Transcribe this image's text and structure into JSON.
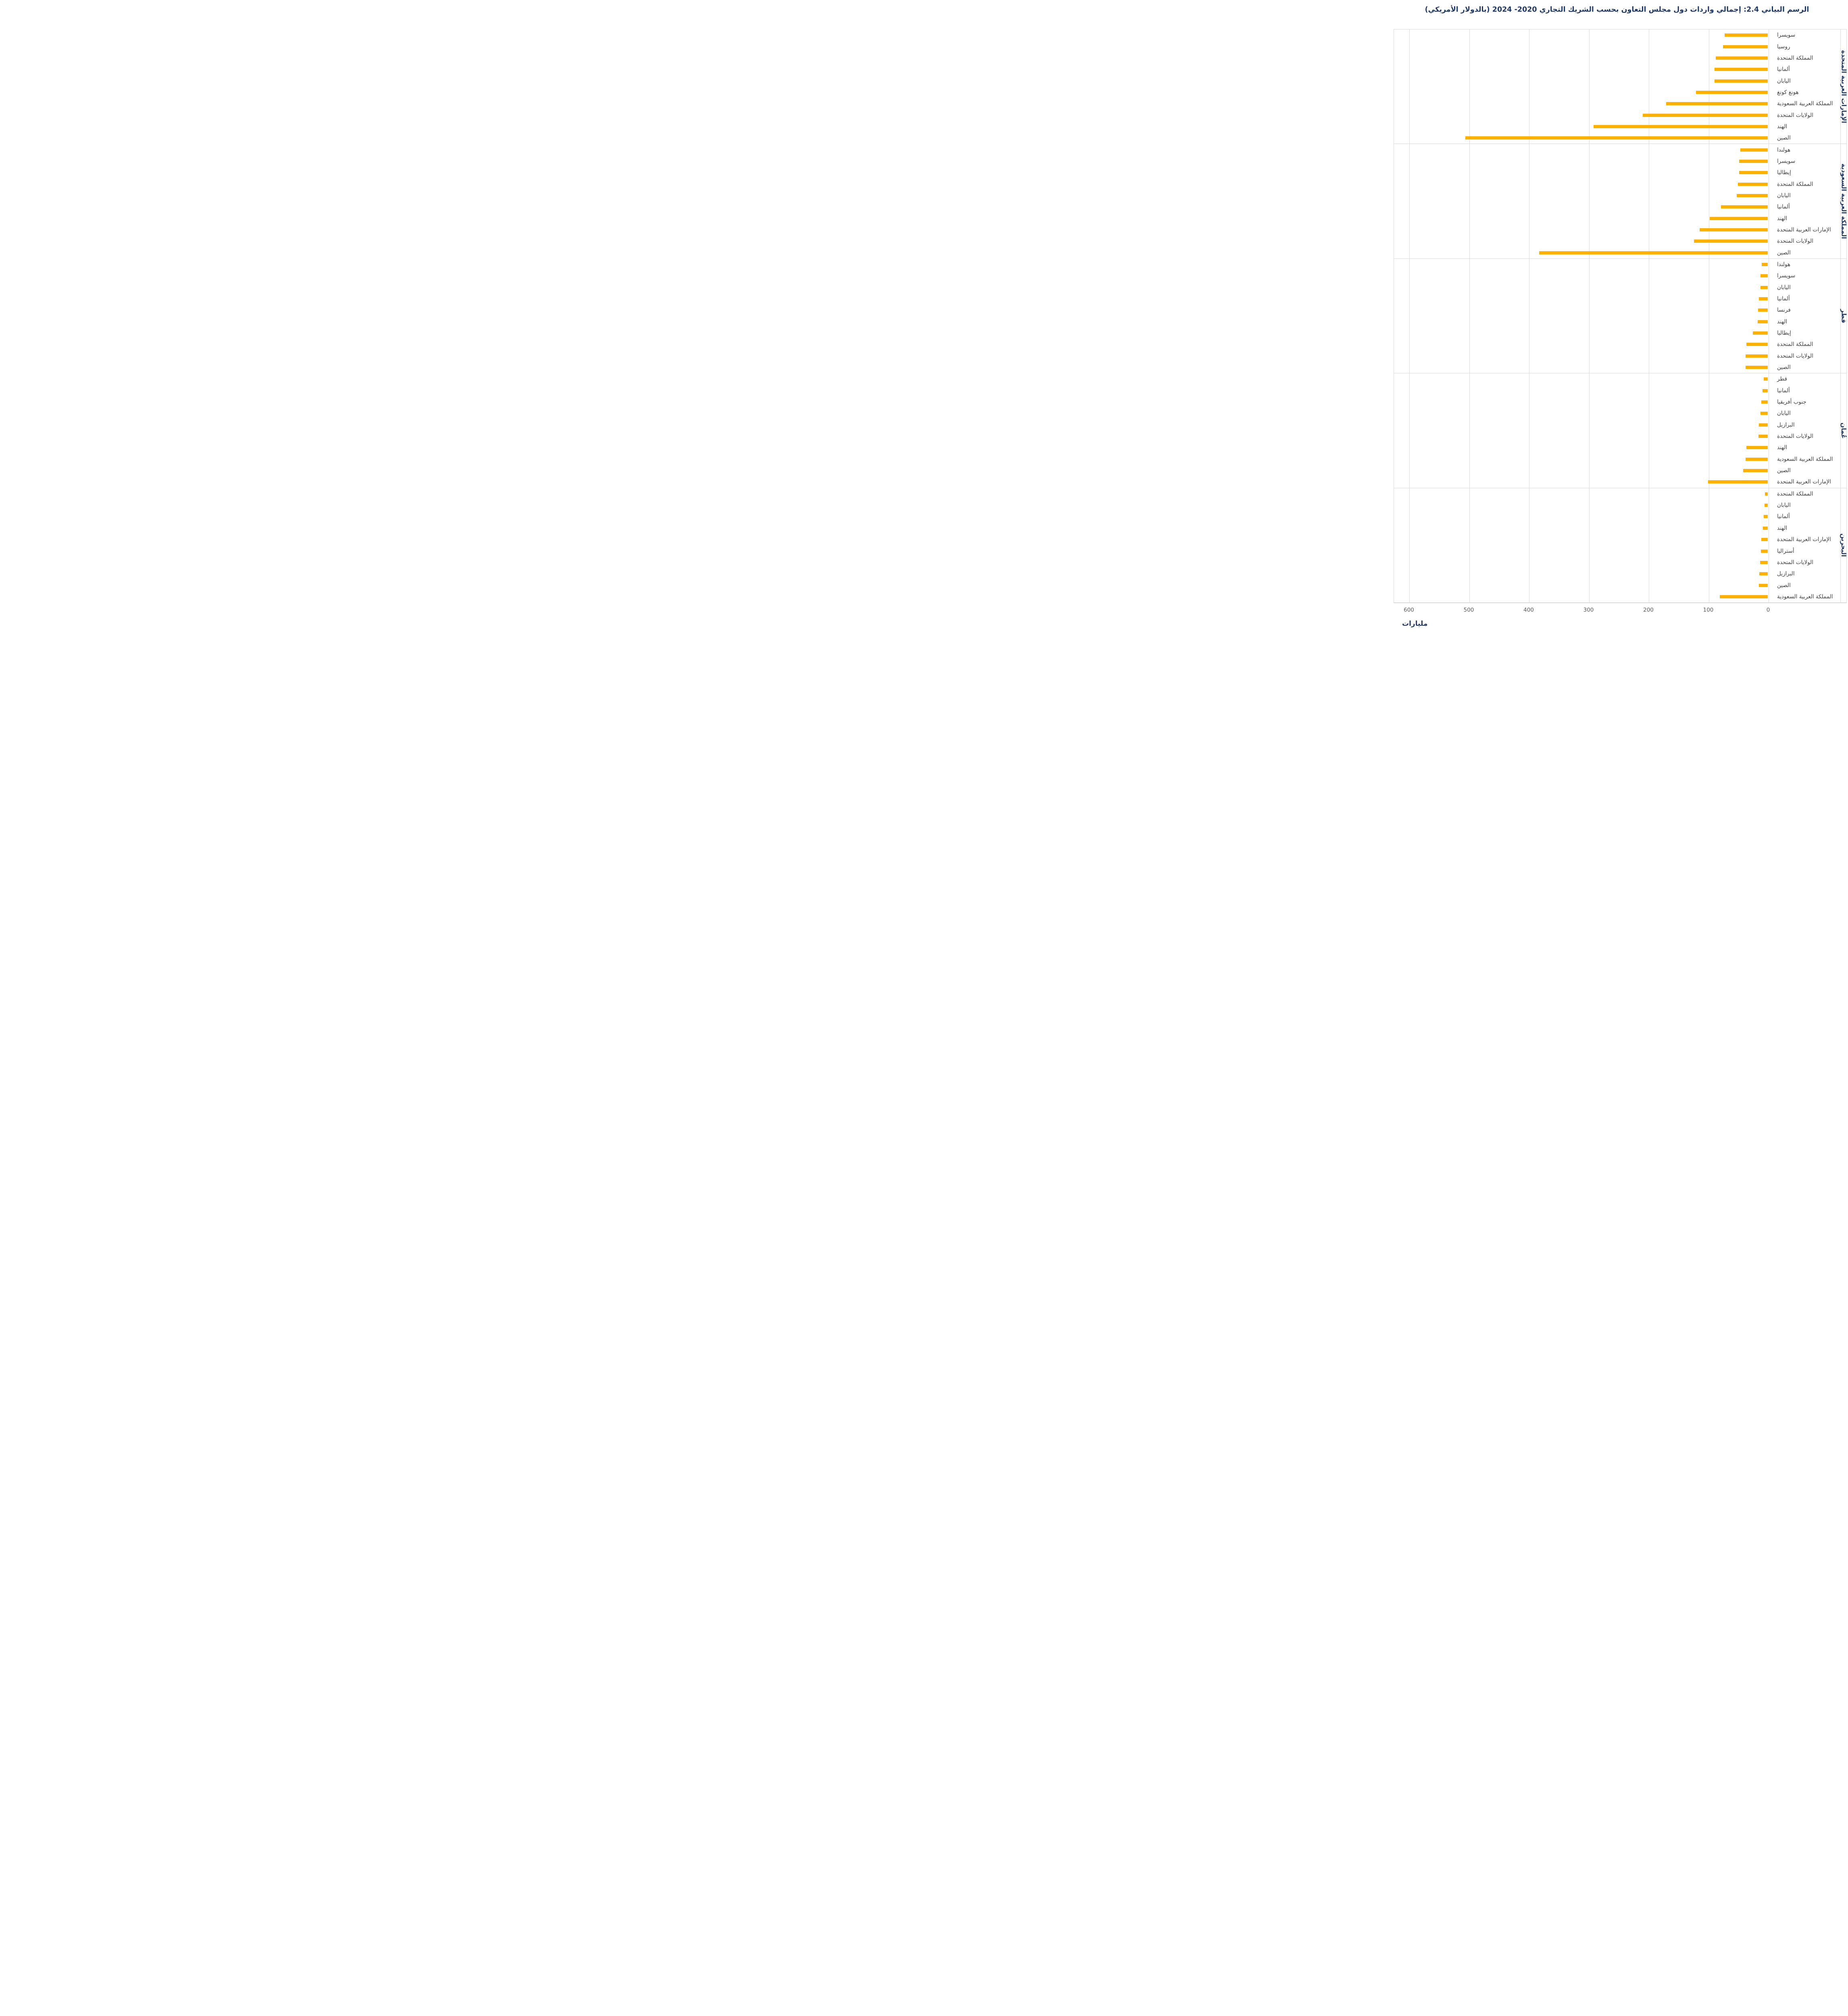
{
  "title": "الرسم البياني 2.4: إجمالي واردات دول مجلس التعاون بحسب الشريك التجاري 2020- 2024 (بالدولار الأمريكي)",
  "colors": {
    "bar": "#FFB000",
    "title": "#1F3864",
    "group_label": "#1F3864",
    "category_label": "#404040",
    "tick_label": "#595959",
    "gridline": "#D9D9D9",
    "unit_label": "#1F3864"
  },
  "chart_data": {
    "type": "bar",
    "orientation": "horizontal",
    "unit": "USD billions",
    "value_axis": {
      "direction": "rtl",
      "min": 0,
      "max": 625,
      "ticks": [
        600,
        500,
        400,
        300,
        200,
        100,
        0
      ],
      "unit_label": "مليارات",
      "grid": true
    },
    "legend": "none",
    "groups": [
      {
        "name": "الإمارات العربية المتحدة",
        "items": [
          {
            "label": "سويسرا",
            "value": 72
          },
          {
            "label": "روسيا",
            "value": 75
          },
          {
            "label": "المملكة المتحدة",
            "value": 87
          },
          {
            "label": "ألمانيا",
            "value": 89
          },
          {
            "label": "اليابان",
            "value": 89
          },
          {
            "label": "هونغ كونغ",
            "value": 120
          },
          {
            "label": "المملكة العربية السعودية",
            "value": 170
          },
          {
            "label": "الولايات المتحدة",
            "value": 209
          },
          {
            "label": "الهند",
            "value": 291
          },
          {
            "label": "الصين",
            "value": 505
          }
        ]
      },
      {
        "name": "المملكة العربية السعودية",
        "items": [
          {
            "label": "هولندا",
            "value": 46
          },
          {
            "label": "سويسرا",
            "value": 48
          },
          {
            "label": "إيطاليا",
            "value": 48
          },
          {
            "label": "المملكة المتحدة",
            "value": 50
          },
          {
            "label": "اليابان",
            "value": 52
          },
          {
            "label": "ألمانيا",
            "value": 78
          },
          {
            "label": "الهند",
            "value": 97
          },
          {
            "label": "الإمارات العربية المتحدة",
            "value": 114
          },
          {
            "label": "الولايات المتحدة",
            "value": 123
          },
          {
            "label": "الصين",
            "value": 382
          }
        ]
      },
      {
        "name": "قطر",
        "items": [
          {
            "label": "هولندا",
            "value": 10
          },
          {
            "label": "سويسرا",
            "value": 12
          },
          {
            "label": "اليابان",
            "value": 12
          },
          {
            "label": "ألمانيا",
            "value": 15
          },
          {
            "label": "فرنسا",
            "value": 16
          },
          {
            "label": "الهند",
            "value": 17
          },
          {
            "label": "إيطاليا",
            "value": 25
          },
          {
            "label": "المملكة المتحدة",
            "value": 36
          },
          {
            "label": "الولايات المتحدة",
            "value": 37
          },
          {
            "label": "الصين",
            "value": 37
          }
        ]
      },
      {
        "name": "عُمان",
        "items": [
          {
            "label": "قطر",
            "value": 7
          },
          {
            "label": "ألمانيا",
            "value": 8.5
          },
          {
            "label": "جنوب أفريقيا",
            "value": 11
          },
          {
            "label": "اليابان",
            "value": 12
          },
          {
            "label": "البرازيل",
            "value": 15
          },
          {
            "label": "الولايات المتحدة",
            "value": 15.5
          },
          {
            "label": "الهند",
            "value": 36
          },
          {
            "label": "المملكة العربية السعودية",
            "value": 37
          },
          {
            "label": "الصين",
            "value": 41
          },
          {
            "label": "الإمارات العربية المتحدة",
            "value": 100
          }
        ]
      },
      {
        "name": "البحرين",
        "items": [
          {
            "label": "المملكة المتحدة",
            "value": 4.5
          },
          {
            "label": "اليابان",
            "value": 5.5
          },
          {
            "label": "ألمانيا",
            "value": 6.5
          },
          {
            "label": "الهند",
            "value": 8
          },
          {
            "label": "الإمارات العربية المتحدة",
            "value": 11
          },
          {
            "label": "أستراليا",
            "value": 11.5
          },
          {
            "label": "الولايات المتحدة",
            "value": 13
          },
          {
            "label": "البرازيل",
            "value": 14
          },
          {
            "label": "الصين",
            "value": 15
          },
          {
            "label": "المملكة العربية السعودية",
            "value": 80
          }
        ]
      }
    ]
  }
}
